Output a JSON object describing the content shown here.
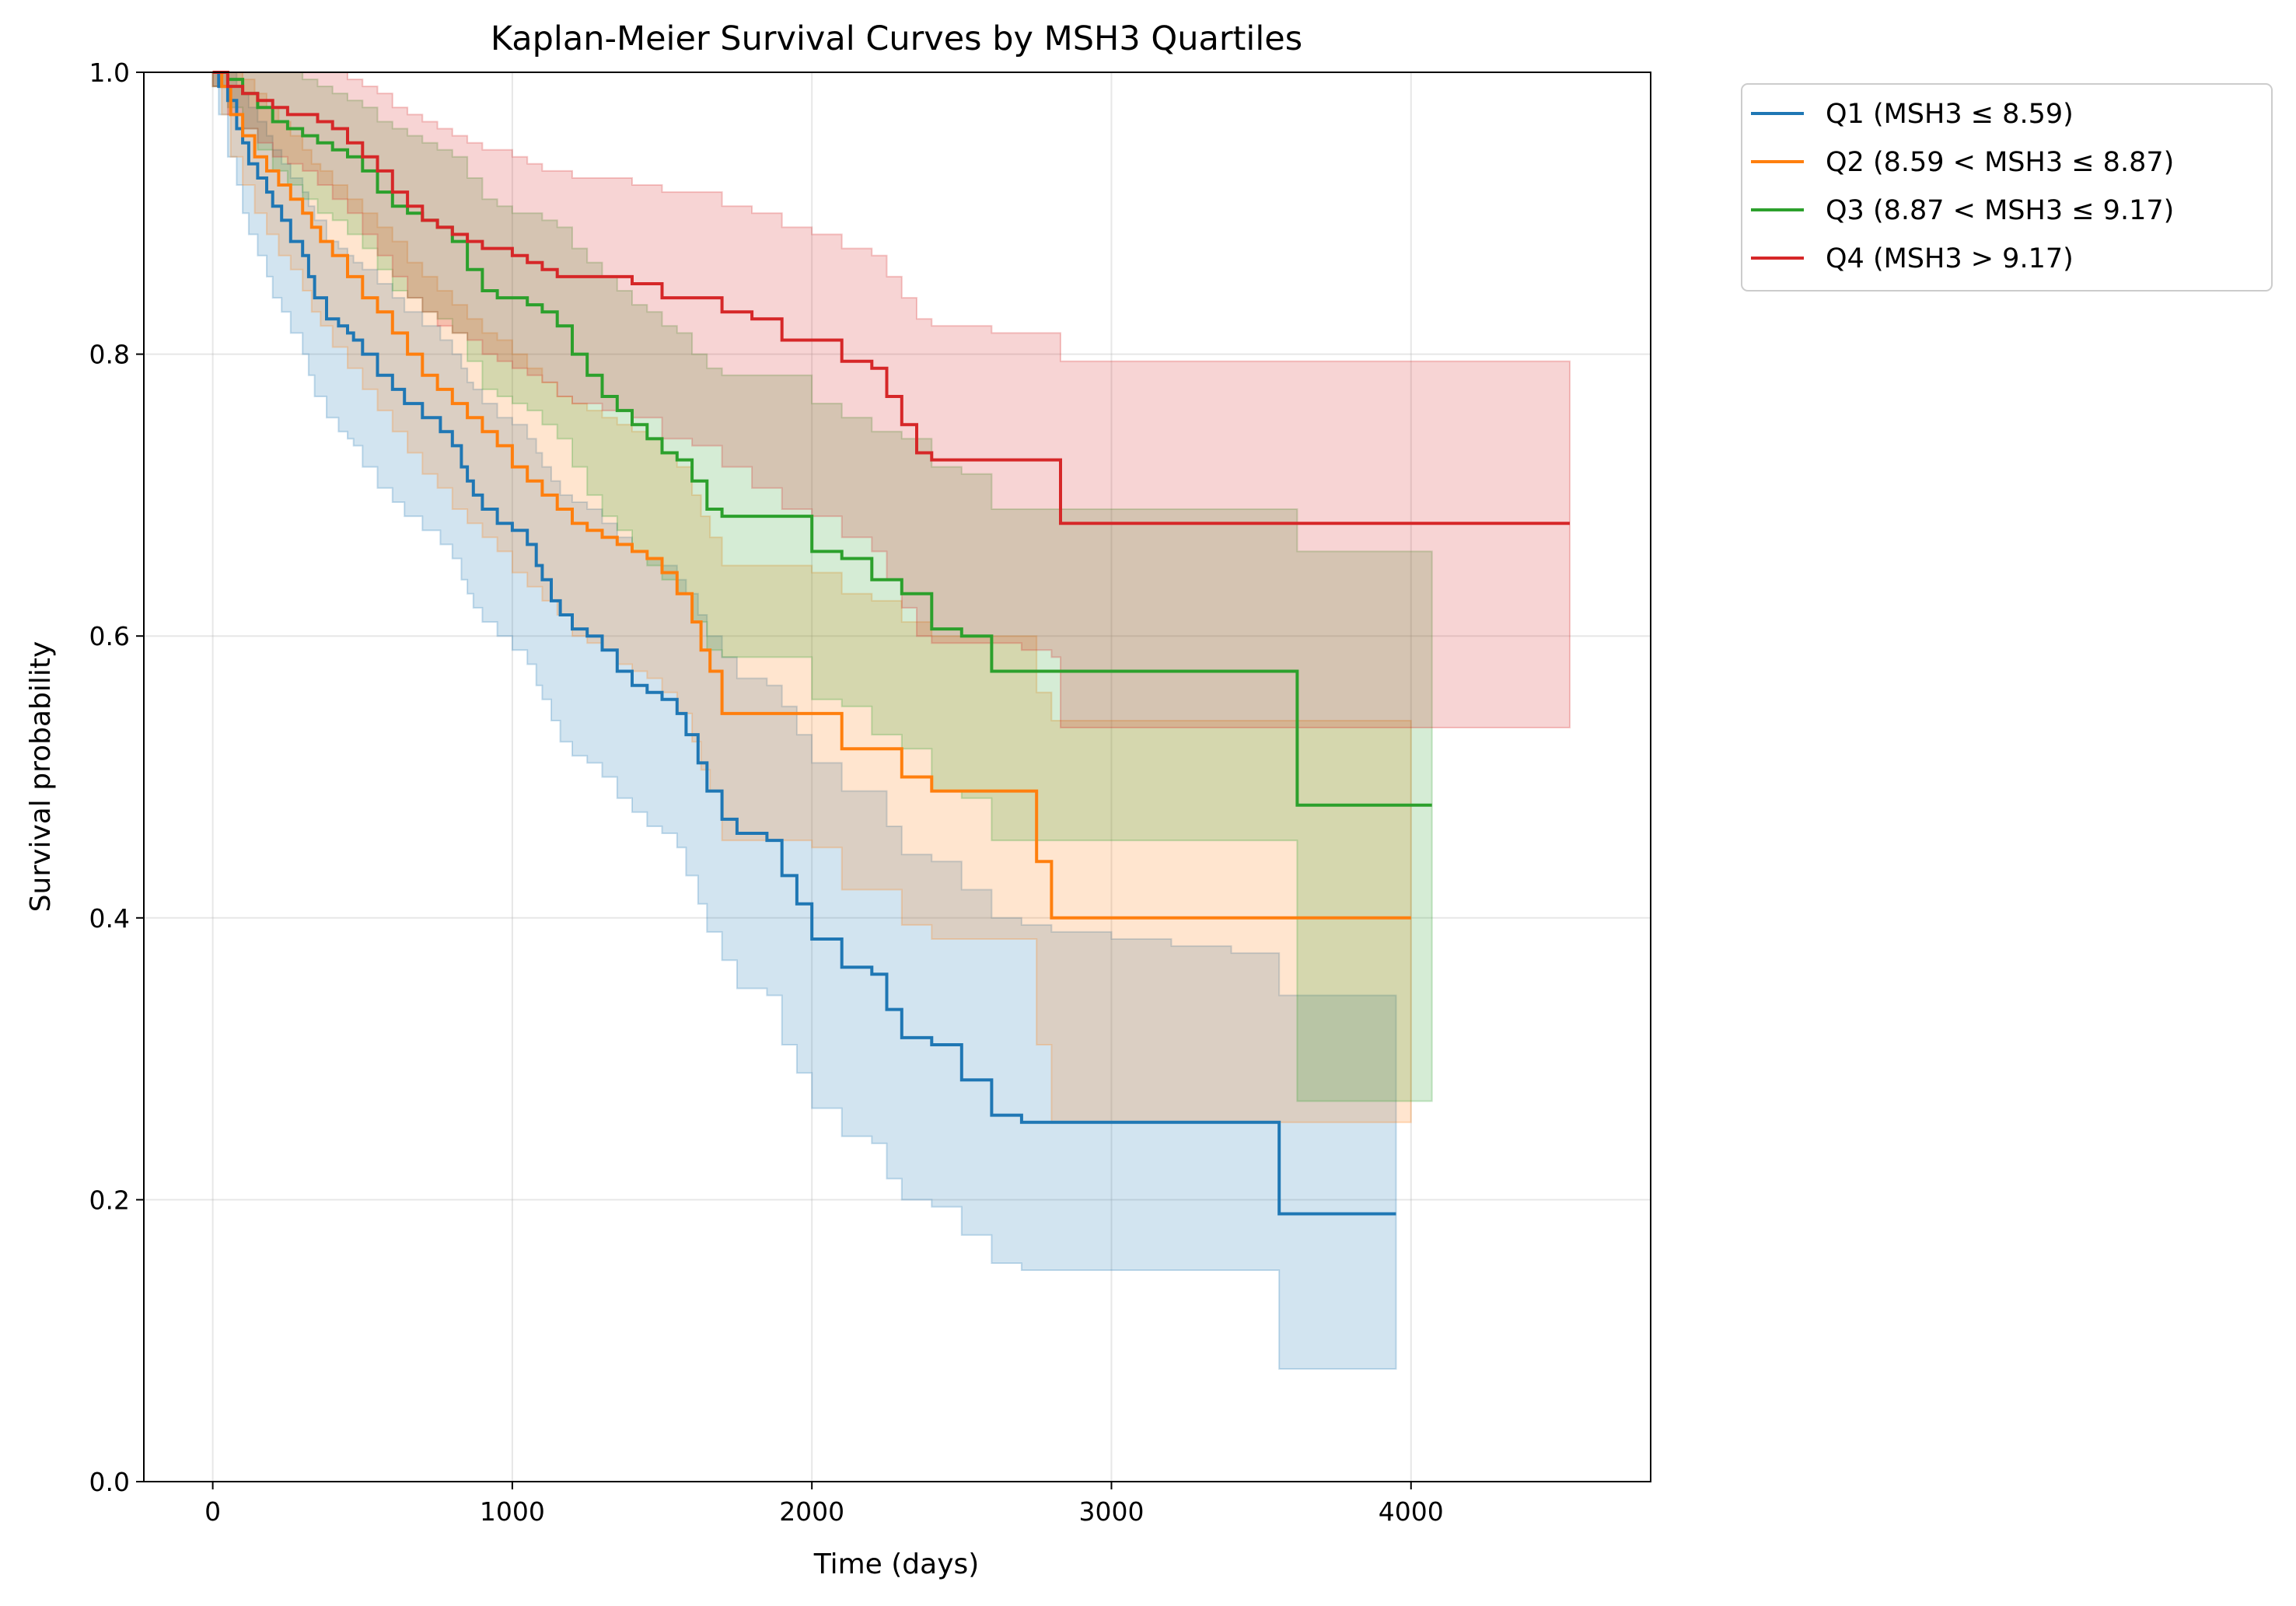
{
  "chart_data": {
    "type": "line",
    "title": "Kaplan-Meier Survival Curves by MSH3 Quartiles",
    "xlabel": "Time (days)",
    "ylabel": "Survival probability",
    "xlim": [
      -230,
      4800
    ],
    "ylim": [
      0.0,
      1.0
    ],
    "xticks": [
      0,
      1000,
      2000,
      3000,
      4000
    ],
    "xtick_labels": [
      "0",
      "1000",
      "2000",
      "3000",
      "4000"
    ],
    "yticks": [
      0.0,
      0.2,
      0.4,
      0.6,
      0.8,
      1.0
    ],
    "ytick_labels": [
      "0.0",
      "0.2",
      "0.4",
      "0.6",
      "0.8",
      "1.0"
    ],
    "grid": true,
    "legend_position": "outside top-right",
    "series": [
      {
        "name": "Q1 (MSH3 ≤ 8.59)",
        "color": "#1f77b4",
        "x": [
          0,
          20,
          50,
          80,
          100,
          120,
          150,
          180,
          200,
          230,
          260,
          300,
          320,
          340,
          380,
          420,
          450,
          470,
          500,
          550,
          600,
          640,
          700,
          760,
          800,
          830,
          850,
          870,
          900,
          950,
          1000,
          1050,
          1080,
          1100,
          1130,
          1160,
          1200,
          1250,
          1300,
          1350,
          1400,
          1450,
          1500,
          1550,
          1580,
          1620,
          1650,
          1700,
          1750,
          1800,
          1850,
          1900,
          1950,
          2000,
          2100,
          2200,
          2250,
          2300,
          2400,
          2500,
          2600,
          2700,
          2800,
          3000,
          3200,
          3400,
          3560,
          3700,
          3800,
          3950
        ],
        "y": [
          1.0,
          0.99,
          0.98,
          0.96,
          0.95,
          0.935,
          0.925,
          0.915,
          0.905,
          0.895,
          0.88,
          0.87,
          0.855,
          0.84,
          0.825,
          0.82,
          0.815,
          0.81,
          0.8,
          0.785,
          0.775,
          0.765,
          0.755,
          0.745,
          0.735,
          0.72,
          0.71,
          0.7,
          0.69,
          0.68,
          0.675,
          0.665,
          0.65,
          0.64,
          0.625,
          0.615,
          0.605,
          0.6,
          0.59,
          0.575,
          0.565,
          0.56,
          0.555,
          0.545,
          0.53,
          0.51,
          0.49,
          0.47,
          0.46,
          0.46,
          0.455,
          0.43,
          0.41,
          0.385,
          0.365,
          0.36,
          0.335,
          0.315,
          0.31,
          0.285,
          0.26,
          0.255,
          0.255,
          0.255,
          0.255,
          0.255,
          0.19,
          0.19,
          0.19,
          0.19
        ],
        "ci_upper": [
          1.0,
          1.0,
          1.0,
          0.99,
          0.985,
          0.975,
          0.965,
          0.955,
          0.945,
          0.935,
          0.925,
          0.915,
          0.905,
          0.895,
          0.88,
          0.875,
          0.87,
          0.865,
          0.86,
          0.85,
          0.84,
          0.83,
          0.82,
          0.81,
          0.8,
          0.79,
          0.78,
          0.775,
          0.765,
          0.755,
          0.75,
          0.74,
          0.73,
          0.72,
          0.71,
          0.7,
          0.695,
          0.69,
          0.68,
          0.67,
          0.66,
          0.655,
          0.65,
          0.64,
          0.63,
          0.615,
          0.6,
          0.585,
          0.57,
          0.57,
          0.565,
          0.55,
          0.53,
          0.51,
          0.49,
          0.49,
          0.465,
          0.445,
          0.44,
          0.42,
          0.4,
          0.395,
          0.39,
          0.385,
          0.38,
          0.375,
          0.345,
          0.345,
          0.345,
          0.345
        ],
        "ci_lower": [
          0.99,
          0.97,
          0.94,
          0.92,
          0.9,
          0.885,
          0.87,
          0.855,
          0.84,
          0.83,
          0.815,
          0.8,
          0.785,
          0.77,
          0.755,
          0.745,
          0.74,
          0.735,
          0.72,
          0.705,
          0.695,
          0.685,
          0.675,
          0.665,
          0.655,
          0.64,
          0.63,
          0.62,
          0.61,
          0.6,
          0.59,
          0.58,
          0.565,
          0.555,
          0.54,
          0.525,
          0.515,
          0.51,
          0.5,
          0.485,
          0.475,
          0.465,
          0.46,
          0.45,
          0.43,
          0.41,
          0.39,
          0.37,
          0.35,
          0.35,
          0.345,
          0.31,
          0.29,
          0.265,
          0.245,
          0.24,
          0.215,
          0.2,
          0.195,
          0.175,
          0.155,
          0.15,
          0.15,
          0.15,
          0.15,
          0.15,
          0.08,
          0.08,
          0.08,
          0.08
        ]
      },
      {
        "name": "Q2 (8.59 < MSH3 ≤ 8.87)",
        "color": "#ff7f0e",
        "x": [
          0,
          30,
          60,
          100,
          140,
          180,
          220,
          260,
          300,
          330,
          360,
          400,
          450,
          500,
          550,
          600,
          650,
          700,
          750,
          800,
          850,
          900,
          950,
          1000,
          1050,
          1100,
          1150,
          1200,
          1250,
          1300,
          1350,
          1400,
          1450,
          1500,
          1550,
          1600,
          1630,
          1660,
          1700,
          1800,
          1900,
          2000,
          2100,
          2200,
          2300,
          2400,
          2500,
          2600,
          2700,
          2750,
          2800,
          3000,
          3200,
          3400,
          3600,
          3800,
          4000
        ],
        "y": [
          1.0,
          0.99,
          0.97,
          0.955,
          0.94,
          0.93,
          0.92,
          0.91,
          0.9,
          0.89,
          0.88,
          0.87,
          0.855,
          0.84,
          0.83,
          0.815,
          0.8,
          0.785,
          0.775,
          0.765,
          0.755,
          0.745,
          0.735,
          0.72,
          0.71,
          0.7,
          0.69,
          0.68,
          0.675,
          0.67,
          0.665,
          0.66,
          0.655,
          0.645,
          0.63,
          0.61,
          0.59,
          0.575,
          0.545,
          0.545,
          0.545,
          0.545,
          0.52,
          0.52,
          0.5,
          0.49,
          0.49,
          0.49,
          0.49,
          0.44,
          0.4,
          0.4,
          0.4,
          0.4,
          0.4,
          0.4,
          0.4
        ],
        "ci_upper": [
          1.0,
          1.0,
          1.0,
          0.995,
          0.985,
          0.975,
          0.965,
          0.955,
          0.945,
          0.935,
          0.93,
          0.92,
          0.91,
          0.9,
          0.89,
          0.88,
          0.865,
          0.855,
          0.845,
          0.835,
          0.825,
          0.815,
          0.81,
          0.8,
          0.79,
          0.78,
          0.77,
          0.765,
          0.76,
          0.755,
          0.75,
          0.745,
          0.74,
          0.73,
          0.72,
          0.7,
          0.685,
          0.67,
          0.65,
          0.65,
          0.65,
          0.645,
          0.63,
          0.625,
          0.61,
          0.6,
          0.6,
          0.6,
          0.6,
          0.56,
          0.54,
          0.54,
          0.54,
          0.54,
          0.54,
          0.54,
          0.54
        ],
        "ci_lower": [
          0.99,
          0.97,
          0.94,
          0.92,
          0.9,
          0.885,
          0.87,
          0.86,
          0.845,
          0.83,
          0.82,
          0.805,
          0.79,
          0.775,
          0.76,
          0.745,
          0.73,
          0.715,
          0.705,
          0.69,
          0.68,
          0.67,
          0.66,
          0.645,
          0.635,
          0.625,
          0.615,
          0.6,
          0.595,
          0.59,
          0.58,
          0.575,
          0.57,
          0.56,
          0.545,
          0.525,
          0.505,
          0.49,
          0.455,
          0.455,
          0.455,
          0.45,
          0.42,
          0.42,
          0.395,
          0.385,
          0.385,
          0.385,
          0.385,
          0.31,
          0.255,
          0.255,
          0.255,
          0.255,
          0.255,
          0.255,
          0.255
        ]
      },
      {
        "name": "Q3 (8.87 < MSH3 ≤ 9.17)",
        "color": "#2ca02c",
        "x": [
          0,
          50,
          100,
          150,
          200,
          250,
          300,
          350,
          400,
          450,
          500,
          550,
          600,
          650,
          700,
          750,
          800,
          850,
          900,
          950,
          1000,
          1050,
          1100,
          1150,
          1200,
          1250,
          1300,
          1350,
          1400,
          1450,
          1500,
          1550,
          1600,
          1650,
          1700,
          1800,
          1900,
          2000,
          2100,
          2200,
          2300,
          2400,
          2500,
          2600,
          2700,
          2800,
          3000,
          3200,
          3400,
          3600,
          3620,
          3800,
          4000,
          4070
        ],
        "y": [
          1.0,
          0.995,
          0.985,
          0.975,
          0.965,
          0.96,
          0.955,
          0.95,
          0.945,
          0.94,
          0.93,
          0.915,
          0.905,
          0.9,
          0.895,
          0.89,
          0.88,
          0.86,
          0.845,
          0.84,
          0.84,
          0.835,
          0.83,
          0.82,
          0.8,
          0.785,
          0.77,
          0.76,
          0.75,
          0.74,
          0.73,
          0.725,
          0.71,
          0.69,
          0.685,
          0.685,
          0.685,
          0.66,
          0.655,
          0.64,
          0.63,
          0.605,
          0.6,
          0.575,
          0.575,
          0.575,
          0.575,
          0.575,
          0.575,
          0.575,
          0.48,
          0.48,
          0.48,
          0.48
        ],
        "ci_upper": [
          1.0,
          1.0,
          1.0,
          1.0,
          1.0,
          1.0,
          0.995,
          0.99,
          0.985,
          0.98,
          0.975,
          0.965,
          0.96,
          0.955,
          0.95,
          0.945,
          0.94,
          0.925,
          0.91,
          0.905,
          0.9,
          0.9,
          0.895,
          0.89,
          0.875,
          0.865,
          0.855,
          0.845,
          0.835,
          0.83,
          0.82,
          0.815,
          0.8,
          0.79,
          0.785,
          0.785,
          0.785,
          0.765,
          0.755,
          0.745,
          0.74,
          0.72,
          0.715,
          0.69,
          0.69,
          0.69,
          0.69,
          0.69,
          0.69,
          0.69,
          0.66,
          0.66,
          0.66,
          0.66
        ],
        "ci_lower": [
          0.99,
          0.975,
          0.96,
          0.945,
          0.93,
          0.92,
          0.91,
          0.9,
          0.895,
          0.885,
          0.875,
          0.86,
          0.845,
          0.84,
          0.83,
          0.825,
          0.815,
          0.795,
          0.775,
          0.77,
          0.765,
          0.76,
          0.75,
          0.74,
          0.72,
          0.7,
          0.685,
          0.675,
          0.66,
          0.65,
          0.64,
          0.63,
          0.61,
          0.59,
          0.585,
          0.585,
          0.585,
          0.555,
          0.55,
          0.53,
          0.52,
          0.49,
          0.485,
          0.455,
          0.455,
          0.455,
          0.455,
          0.455,
          0.455,
          0.455,
          0.27,
          0.27,
          0.27,
          0.27
        ]
      },
      {
        "name": "Q4 (MSH3 > 9.17)",
        "color": "#d62728",
        "x": [
          0,
          50,
          100,
          150,
          200,
          250,
          300,
          350,
          400,
          450,
          500,
          550,
          600,
          650,
          700,
          750,
          800,
          850,
          900,
          950,
          1000,
          1050,
          1100,
          1150,
          1200,
          1300,
          1400,
          1500,
          1600,
          1700,
          1800,
          1900,
          2000,
          2100,
          2200,
          2250,
          2300,
          2350,
          2400,
          2500,
          2600,
          2700,
          2800,
          2830,
          3000,
          3200,
          3400,
          3600,
          3800,
          4000,
          4200,
          4400,
          4530
        ],
        "y": [
          1.0,
          0.99,
          0.985,
          0.98,
          0.975,
          0.97,
          0.97,
          0.965,
          0.96,
          0.95,
          0.94,
          0.93,
          0.915,
          0.905,
          0.895,
          0.89,
          0.885,
          0.88,
          0.875,
          0.875,
          0.87,
          0.865,
          0.86,
          0.855,
          0.855,
          0.855,
          0.85,
          0.84,
          0.84,
          0.83,
          0.825,
          0.81,
          0.81,
          0.795,
          0.79,
          0.77,
          0.75,
          0.73,
          0.725,
          0.725,
          0.725,
          0.725,
          0.725,
          0.68,
          0.68,
          0.68,
          0.68,
          0.68,
          0.68,
          0.68,
          0.68,
          0.68,
          0.68
        ],
        "ci_upper": [
          1.0,
          1.0,
          1.0,
          1.0,
          1.0,
          1.0,
          1.0,
          1.0,
          1.0,
          0.995,
          0.99,
          0.985,
          0.975,
          0.97,
          0.965,
          0.96,
          0.955,
          0.95,
          0.945,
          0.945,
          0.94,
          0.935,
          0.93,
          0.93,
          0.925,
          0.925,
          0.92,
          0.915,
          0.915,
          0.905,
          0.9,
          0.89,
          0.885,
          0.875,
          0.87,
          0.855,
          0.84,
          0.825,
          0.82,
          0.82,
          0.815,
          0.815,
          0.815,
          0.795,
          0.795,
          0.795,
          0.795,
          0.795,
          0.795,
          0.795,
          0.795,
          0.795,
          0.795
        ],
        "ci_lower": [
          0.99,
          0.97,
          0.96,
          0.95,
          0.94,
          0.935,
          0.93,
          0.92,
          0.91,
          0.9,
          0.885,
          0.87,
          0.855,
          0.84,
          0.83,
          0.82,
          0.815,
          0.81,
          0.8,
          0.795,
          0.79,
          0.785,
          0.78,
          0.77,
          0.765,
          0.76,
          0.755,
          0.74,
          0.735,
          0.72,
          0.705,
          0.69,
          0.685,
          0.67,
          0.66,
          0.64,
          0.62,
          0.6,
          0.595,
          0.595,
          0.595,
          0.59,
          0.585,
          0.535,
          0.535,
          0.535,
          0.535,
          0.535,
          0.535,
          0.535,
          0.535,
          0.535,
          0.535
        ]
      }
    ]
  }
}
